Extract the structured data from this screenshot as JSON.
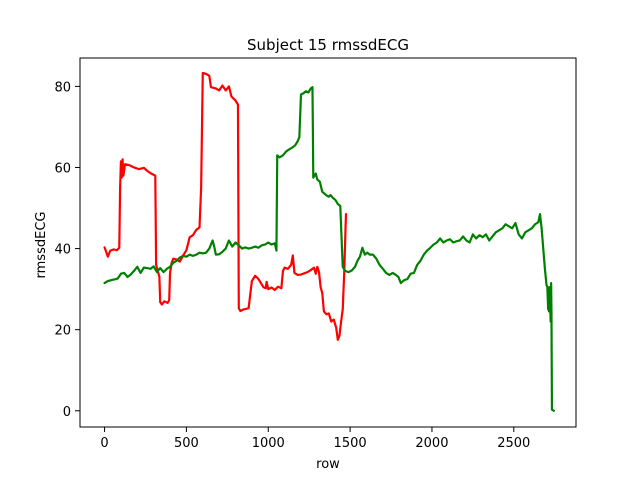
{
  "chart_data": {
    "type": "line",
    "title": "Subject 15 rmssdECG",
    "xlabel": "row",
    "ylabel": "rmssdECG",
    "xlim": [
      -150,
      2880
    ],
    "ylim": [
      -4,
      87
    ],
    "xticks": [
      0,
      500,
      1000,
      1500,
      2000,
      2500
    ],
    "yticks": [
      0,
      20,
      40,
      60,
      80
    ],
    "grid": false,
    "legend": "none",
    "series": [
      {
        "color": "#ff0000",
        "points": [
          [
            0,
            40.3
          ],
          [
            10,
            39.2
          ],
          [
            20,
            38.0
          ],
          [
            35,
            39.5
          ],
          [
            55,
            39.8
          ],
          [
            75,
            39.6
          ],
          [
            90,
            40.2
          ],
          [
            95,
            55.0
          ],
          [
            100,
            61.5
          ],
          [
            105,
            57.5
          ],
          [
            110,
            62.0
          ],
          [
            115,
            58.0
          ],
          [
            125,
            60.8
          ],
          [
            150,
            60.6
          ],
          [
            180,
            60.0
          ],
          [
            210,
            59.6
          ],
          [
            240,
            59.9
          ],
          [
            260,
            59.2
          ],
          [
            280,
            58.6
          ],
          [
            310,
            58.0
          ],
          [
            315,
            36.0
          ],
          [
            325,
            34.5
          ],
          [
            335,
            33.0
          ],
          [
            340,
            26.8
          ],
          [
            350,
            26.2
          ],
          [
            365,
            27.0
          ],
          [
            385,
            26.6
          ],
          [
            395,
            27.3
          ],
          [
            400,
            34.0
          ],
          [
            410,
            36.5
          ],
          [
            420,
            37.5
          ],
          [
            440,
            37.3
          ],
          [
            460,
            36.8
          ],
          [
            480,
            38.3
          ],
          [
            500,
            39.6
          ],
          [
            520,
            42.8
          ],
          [
            540,
            43.3
          ],
          [
            560,
            44.6
          ],
          [
            580,
            45.2
          ],
          [
            590,
            55.0
          ],
          [
            600,
            83.3
          ],
          [
            620,
            83.1
          ],
          [
            640,
            82.6
          ],
          [
            650,
            79.8
          ],
          [
            680,
            79.5
          ],
          [
            700,
            79.0
          ],
          [
            720,
            80.2
          ],
          [
            740,
            79.0
          ],
          [
            760,
            80.0
          ],
          [
            775,
            77.5
          ],
          [
            800,
            76.5
          ],
          [
            815,
            75.5
          ],
          [
            820,
            25.3
          ],
          [
            830,
            24.6
          ],
          [
            850,
            25.0
          ],
          [
            880,
            25.3
          ],
          [
            900,
            32.0
          ],
          [
            920,
            33.3
          ],
          [
            940,
            32.5
          ],
          [
            955,
            31.5
          ],
          [
            970,
            30.5
          ],
          [
            985,
            30.2
          ],
          [
            990,
            31.8
          ],
          [
            1000,
            30.0
          ],
          [
            1020,
            30.4
          ],
          [
            1040,
            29.8
          ],
          [
            1060,
            30.6
          ],
          [
            1080,
            30.2
          ],
          [
            1090,
            34.5
          ],
          [
            1100,
            35.3
          ],
          [
            1120,
            35.0
          ],
          [
            1140,
            36.0
          ],
          [
            1150,
            38.3
          ],
          [
            1160,
            34.0
          ],
          [
            1180,
            33.5
          ],
          [
            1200,
            33.6
          ],
          [
            1220,
            33.9
          ],
          [
            1240,
            34.2
          ],
          [
            1260,
            34.7
          ],
          [
            1280,
            35.3
          ],
          [
            1290,
            33.8
          ],
          [
            1300,
            35.5
          ],
          [
            1310,
            34.2
          ],
          [
            1320,
            30.5
          ],
          [
            1330,
            29.0
          ],
          [
            1340,
            24.5
          ],
          [
            1355,
            23.8
          ],
          [
            1370,
            24.0
          ],
          [
            1385,
            22.0
          ],
          [
            1400,
            22.5
          ],
          [
            1415,
            20.5
          ],
          [
            1425,
            17.5
          ],
          [
            1435,
            18.5
          ],
          [
            1445,
            22.0
          ],
          [
            1455,
            25.0
          ],
          [
            1465,
            35.0
          ],
          [
            1472,
            45.0
          ],
          [
            1475,
            48.5
          ]
        ]
      },
      {
        "color": "#008000",
        "points": [
          [
            0,
            31.5
          ],
          [
            20,
            32.0
          ],
          [
            40,
            32.2
          ],
          [
            60,
            32.4
          ],
          [
            80,
            32.6
          ],
          [
            100,
            33.8
          ],
          [
            120,
            34.0
          ],
          [
            140,
            33.0
          ],
          [
            160,
            33.6
          ],
          [
            180,
            34.5
          ],
          [
            200,
            35.5
          ],
          [
            220,
            34.0
          ],
          [
            240,
            35.3
          ],
          [
            260,
            35.2
          ],
          [
            280,
            35.0
          ],
          [
            300,
            35.6
          ],
          [
            320,
            34.2
          ],
          [
            340,
            35.2
          ],
          [
            360,
            34.2
          ],
          [
            380,
            35.0
          ],
          [
            400,
            35.5
          ],
          [
            420,
            36.5
          ],
          [
            440,
            37.0
          ],
          [
            460,
            37.8
          ],
          [
            480,
            38.2
          ],
          [
            500,
            38.0
          ],
          [
            520,
            38.5
          ],
          [
            540,
            38.2
          ],
          [
            560,
            38.5
          ],
          [
            580,
            39.0
          ],
          [
            600,
            38.8
          ],
          [
            620,
            39.0
          ],
          [
            640,
            40.0
          ],
          [
            660,
            42.0
          ],
          [
            670,
            40.5
          ],
          [
            680,
            38.5
          ],
          [
            700,
            38.6
          ],
          [
            720,
            39.2
          ],
          [
            740,
            40.0
          ],
          [
            760,
            42.0
          ],
          [
            780,
            40.5
          ],
          [
            800,
            41.5
          ],
          [
            820,
            40.8
          ],
          [
            840,
            40.0
          ],
          [
            860,
            40.3
          ],
          [
            880,
            40.0
          ],
          [
            900,
            40.2
          ],
          [
            920,
            40.5
          ],
          [
            940,
            40.2
          ],
          [
            960,
            40.8
          ],
          [
            980,
            41.0
          ],
          [
            1000,
            41.5
          ],
          [
            1020,
            41.0
          ],
          [
            1040,
            41.3
          ],
          [
            1050,
            39.5
          ],
          [
            1055,
            63.0
          ],
          [
            1070,
            62.5
          ],
          [
            1090,
            63.0
          ],
          [
            1110,
            64.0
          ],
          [
            1130,
            64.5
          ],
          [
            1150,
            65.0
          ],
          [
            1165,
            65.5
          ],
          [
            1180,
            66.5
          ],
          [
            1190,
            67.5
          ],
          [
            1200,
            78.0
          ],
          [
            1215,
            78.3
          ],
          [
            1230,
            78.8
          ],
          [
            1245,
            78.5
          ],
          [
            1260,
            79.5
          ],
          [
            1270,
            79.8
          ],
          [
            1272,
            72.0
          ],
          [
            1275,
            57.5
          ],
          [
            1290,
            58.5
          ],
          [
            1300,
            57.0
          ],
          [
            1315,
            56.5
          ],
          [
            1330,
            54.0
          ],
          [
            1345,
            53.5
          ],
          [
            1360,
            53.0
          ],
          [
            1370,
            52.8
          ],
          [
            1380,
            53.2
          ],
          [
            1395,
            52.5
          ],
          [
            1410,
            52.0
          ],
          [
            1425,
            51.0
          ],
          [
            1440,
            50.5
          ],
          [
            1455,
            35.5
          ],
          [
            1470,
            34.5
          ],
          [
            1490,
            34.2
          ],
          [
            1510,
            34.6
          ],
          [
            1530,
            35.5
          ],
          [
            1545,
            37.0
          ],
          [
            1560,
            38.0
          ],
          [
            1575,
            40.2
          ],
          [
            1590,
            38.5
          ],
          [
            1605,
            39.0
          ],
          [
            1620,
            38.5
          ],
          [
            1640,
            38.5
          ],
          [
            1660,
            37.5
          ],
          [
            1680,
            36.0
          ],
          [
            1700,
            35.0
          ],
          [
            1720,
            34.0
          ],
          [
            1740,
            33.5
          ],
          [
            1760,
            34.0
          ],
          [
            1780,
            33.5
          ],
          [
            1795,
            33.0
          ],
          [
            1810,
            31.5
          ],
          [
            1830,
            32.2
          ],
          [
            1850,
            32.5
          ],
          [
            1870,
            33.8
          ],
          [
            1890,
            34.0
          ],
          [
            1910,
            36.0
          ],
          [
            1930,
            37.0
          ],
          [
            1950,
            38.5
          ],
          [
            1970,
            39.5
          ],
          [
            1990,
            40.2
          ],
          [
            2010,
            41.0
          ],
          [
            2030,
            41.5
          ],
          [
            2050,
            42.5
          ],
          [
            2070,
            41.5
          ],
          [
            2090,
            42.0
          ],
          [
            2110,
            42.3
          ],
          [
            2130,
            41.5
          ],
          [
            2150,
            41.8
          ],
          [
            2170,
            42.0
          ],
          [
            2190,
            43.0
          ],
          [
            2210,
            42.0
          ],
          [
            2230,
            41.5
          ],
          [
            2250,
            43.5
          ],
          [
            2270,
            42.5
          ],
          [
            2290,
            43.3
          ],
          [
            2310,
            42.8
          ],
          [
            2330,
            43.5
          ],
          [
            2350,
            42.0
          ],
          [
            2370,
            43.0
          ],
          [
            2390,
            44.0
          ],
          [
            2410,
            44.5
          ],
          [
            2430,
            45.0
          ],
          [
            2450,
            46.0
          ],
          [
            2470,
            45.5
          ],
          [
            2490,
            45.0
          ],
          [
            2510,
            46.3
          ],
          [
            2530,
            43.5
          ],
          [
            2550,
            42.5
          ],
          [
            2570,
            44.0
          ],
          [
            2590,
            44.5
          ],
          [
            2610,
            45.0
          ],
          [
            2630,
            46.0
          ],
          [
            2650,
            46.5
          ],
          [
            2660,
            48.5
          ],
          [
            2670,
            45.0
          ],
          [
            2680,
            40.0
          ],
          [
            2690,
            35.0
          ],
          [
            2700,
            31.0
          ],
          [
            2705,
            30.5
          ],
          [
            2710,
            25.0
          ],
          [
            2712,
            28.0
          ],
          [
            2715,
            24.5
          ],
          [
            2718,
            30.5
          ],
          [
            2722,
            27.0
          ],
          [
            2725,
            22.0
          ],
          [
            2728,
            31.5
          ],
          [
            2730,
            25.0
          ],
          [
            2733,
            0.3
          ],
          [
            2745,
            0.0
          ]
        ]
      }
    ]
  }
}
